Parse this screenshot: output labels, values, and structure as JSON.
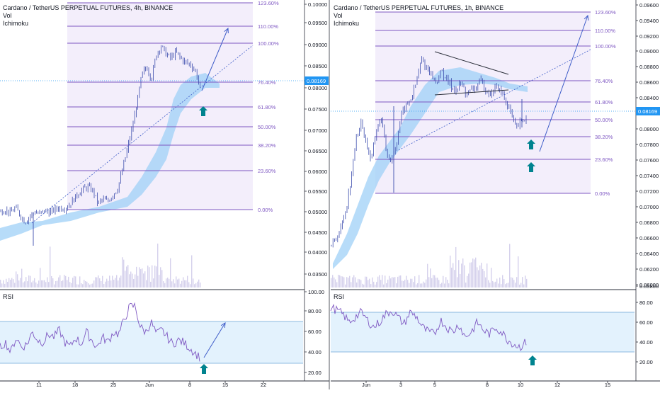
{
  "panels": [
    {
      "title": "Cardano / TetherUS PERPETUAL FUTURES, 4h, BINANCE",
      "indicators": [
        "Vol",
        "Ichimoku"
      ],
      "rsi_label": "RSI",
      "last_price_label": "0.08169",
      "price_ticks": [
        "0.10000",
        "0.09500",
        "0.09000",
        "0.08500",
        "0.08000",
        "0.07500",
        "0.07000",
        "0.06500",
        "0.06000",
        "0.05500",
        "0.05000",
        "0.04500",
        "0.04000",
        "0.03500"
      ],
      "rsi_ticks": [
        "100.00",
        "80.00",
        "60.00",
        "40.00",
        "20.00"
      ],
      "time_ticks": [
        "11",
        "18",
        "25",
        "Jun",
        "8",
        "15",
        "22"
      ],
      "fib_levels": [
        "123.60%",
        "110.00%",
        "100.00%",
        "76.40%",
        "61.80%",
        "50.00%",
        "38.20%",
        "23.60%",
        "0.00%"
      ]
    },
    {
      "title": "Cardano / TetherUS PERPETUAL FUTURES, 1h, BINANCE",
      "indicators": [
        "Vol",
        "Ichimoku"
      ],
      "rsi_label": "RSI",
      "last_price_label": "0.08169",
      "price_ticks": [
        "0.09600",
        "0.09400",
        "0.09200",
        "0.09000",
        "0.08800",
        "0.08600",
        "0.08400",
        "0.08200",
        "0.08000",
        "0.07800",
        "0.07600",
        "0.07400",
        "0.07200",
        "0.07000",
        "0.06800",
        "0.06600",
        "0.06400",
        "0.06200",
        "0.06000",
        "0.05800"
      ],
      "rsi_ticks": [
        "80.00",
        "60.00",
        "40.00",
        "20.00"
      ],
      "time_ticks": [
        "Jun",
        "3",
        "5",
        "8",
        "10",
        "12",
        "15"
      ],
      "fib_levels": [
        "123.60%",
        "110.00%",
        "100.00%",
        "76.40%",
        "61.80%",
        "50.00%",
        "38.20%",
        "23.60%",
        "0.00%"
      ]
    }
  ],
  "chart_data": [
    {
      "type": "candlestick",
      "title": "Cardano / TetherUS PERPETUAL FUTURES, 4h, BINANCE",
      "overlays": [
        "Ichimoku cloud",
        "Fibonacci retracement",
        "Volume",
        "RSI"
      ],
      "ylim": [
        0.0325,
        0.1005
      ],
      "last_price": 0.08169,
      "fib_prices": {
        "0.00%": 0.0505,
        "23.60%": 0.0605,
        "38.20%": 0.0658,
        "50.00%": 0.0705,
        "61.80%": 0.0755,
        "76.40%": 0.0815,
        "100.00%": 0.0905,
        "110.00%": 0.0945,
        "123.60%": 0.1
      },
      "rsi_band": [
        30,
        70
      ],
      "close_series": [
        0.05,
        0.0505,
        0.0497,
        0.051,
        0.0492,
        0.0475,
        0.049,
        0.05,
        0.0495,
        0.0503,
        0.0498,
        0.0505,
        0.051,
        0.0508,
        0.0515,
        0.053,
        0.0545,
        0.0555,
        0.056,
        0.055,
        0.052,
        0.053,
        0.0525,
        0.054,
        0.0555,
        0.06,
        0.065,
        0.07,
        0.076,
        0.083,
        0.085,
        0.082,
        0.088,
        0.09,
        0.088,
        0.087,
        0.0885,
        0.087,
        0.086,
        0.0855,
        0.084,
        0.08
      ],
      "rsi_series": [
        45,
        50,
        40,
        55,
        45,
        48,
        60,
        52,
        50,
        58,
        55,
        62,
        50,
        45,
        55,
        48,
        60,
        52,
        45,
        55,
        50,
        60,
        58,
        72,
        85,
        86,
        65,
        60,
        70,
        58,
        62,
        55,
        48,
        52,
        50,
        45,
        40,
        35
      ]
    },
    {
      "type": "candlestick",
      "title": "Cardano / TetherUS PERPETUAL FUTURES, 1h, BINANCE",
      "overlays": [
        "Ichimoku cloud",
        "Fibonacci retracement",
        "Volume",
        "RSI"
      ],
      "ylim": [
        0.0575,
        0.0965
      ],
      "last_price": 0.08169,
      "fib_prices": {
        "0.00%": 0.0705,
        "23.60%": 0.075,
        "38.20%": 0.0778,
        "50.00%": 0.08,
        "61.80%": 0.0823,
        "76.40%": 0.0855,
        "100.00%": 0.09,
        "110.00%": 0.092,
        "123.60%": 0.0948
      },
      "rsi_band": [
        30,
        70
      ],
      "close_series": [
        0.065,
        0.066,
        0.0675,
        0.07,
        0.074,
        0.079,
        0.081,
        0.078,
        0.076,
        0.08,
        0.0815,
        0.077,
        0.076,
        0.078,
        0.082,
        0.083,
        0.084,
        0.086,
        0.089,
        0.088,
        0.087,
        0.086,
        0.0875,
        0.0865,
        0.0855,
        0.085,
        0.086,
        0.0845,
        0.085,
        0.0855,
        0.0862,
        0.085,
        0.0845,
        0.0855,
        0.0848,
        0.0835,
        0.082,
        0.08,
        0.081,
        0.0815
      ],
      "rsi_series": [
        75,
        72,
        68,
        60,
        65,
        70,
        62,
        55,
        60,
        68,
        72,
        65,
        58,
        70,
        66,
        55,
        50,
        48,
        62,
        55,
        50,
        58,
        45,
        50,
        60,
        52,
        48,
        55,
        50,
        42,
        38,
        35,
        40
      ]
    }
  ],
  "colors": {
    "candle": "#3c4cad",
    "fib_line": "#7e57c2",
    "fib_fill": "#f3eefb",
    "cloud": "#9fd0f7",
    "rsi_line": "#7e57c2",
    "rsi_band": "#e3f2fd",
    "volume": "#c7c1e6",
    "arrow": "#00838f",
    "trend": "#3f5dc9",
    "price_label": "#2196f3"
  }
}
